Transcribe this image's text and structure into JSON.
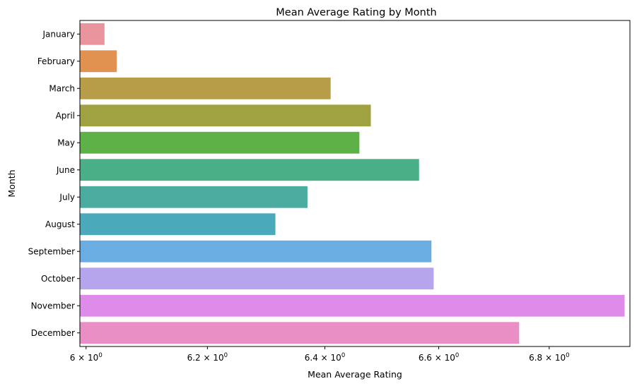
{
  "chart_data": {
    "type": "bar",
    "orientation": "horizontal",
    "title": "Mean Average Rating by Month",
    "xlabel": "Mean Average Rating",
    "ylabel": "Month",
    "x_scale": "log",
    "xlim": [
      5.99,
      6.95
    ],
    "x_ticks": [
      {
        "value": 6.0,
        "base": "6",
        "exp": "0"
      },
      {
        "value": 6.2,
        "base": "6.2",
        "exp": "0"
      },
      {
        "value": 6.4,
        "base": "6.4",
        "exp": "0"
      },
      {
        "value": 6.6,
        "base": "6.6",
        "exp": "0"
      },
      {
        "value": 6.8,
        "base": "6.8",
        "exp": "0"
      }
    ],
    "x_tick_times": "×",
    "x_tick_mantissa": "10",
    "grid": false,
    "categories": [
      "January",
      "February",
      "March",
      "April",
      "May",
      "June",
      "July",
      "August",
      "September",
      "October",
      "November",
      "December"
    ],
    "values": [
      6.03,
      6.05,
      6.41,
      6.48,
      6.46,
      6.565,
      6.37,
      6.315,
      6.587,
      6.591,
      6.94,
      6.745
    ],
    "colors": [
      "#ea949d",
      "#e19251",
      "#b89d48",
      "#a0a242",
      "#5db146",
      "#4aaf86",
      "#4aab9e",
      "#4ba9bc",
      "#6aade3",
      "#b6a5ed",
      "#df8bea",
      "#e98fc5"
    ]
  }
}
